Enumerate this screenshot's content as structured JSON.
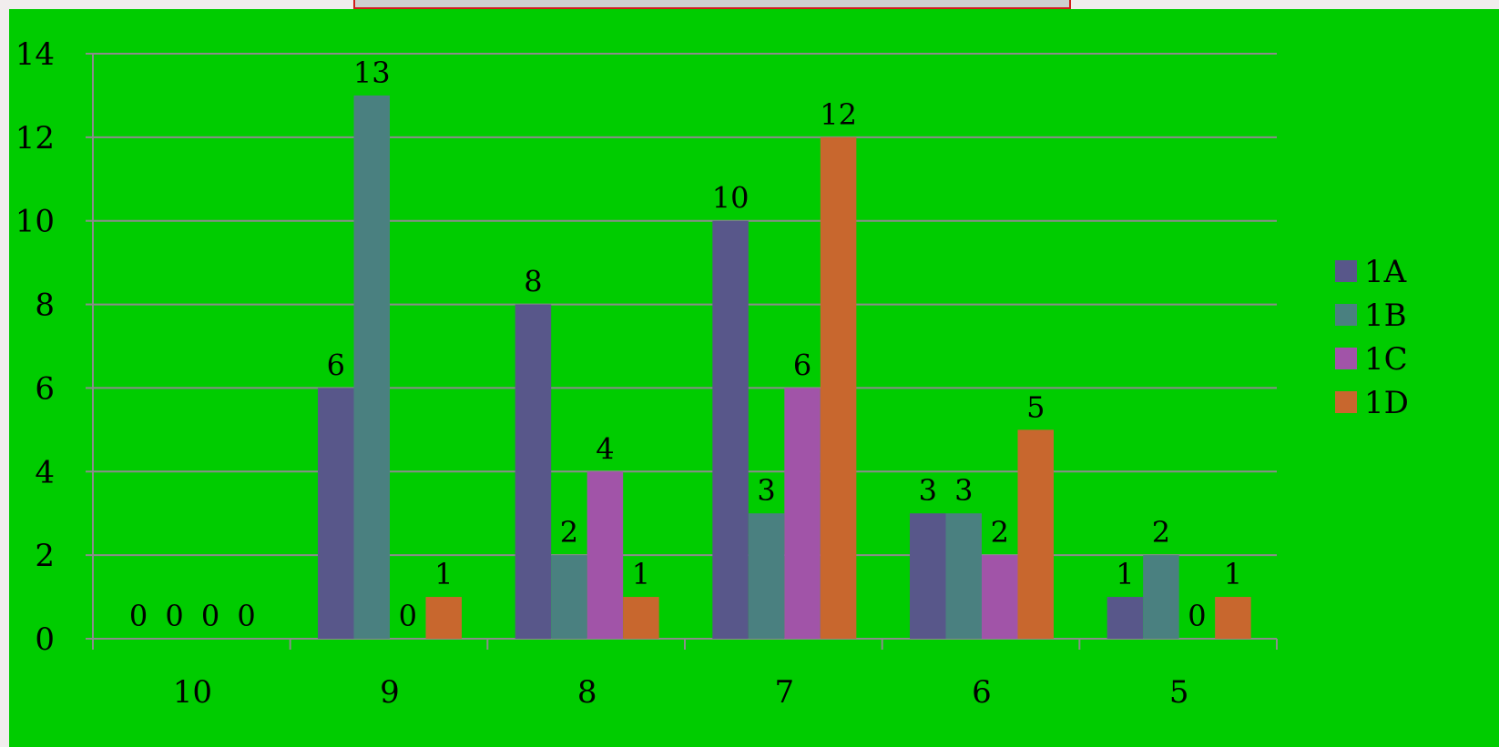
{
  "chart_data": {
    "type": "bar",
    "title": "",
    "xlabel": "",
    "ylabel": "",
    "categories": [
      "10",
      "9",
      "8",
      "7",
      "6",
      "5"
    ],
    "series": [
      {
        "name": "1A",
        "color": "#58578a",
        "values": [
          0,
          6,
          8,
          10,
          3,
          1
        ]
      },
      {
        "name": "1B",
        "color": "#4a8080",
        "values": [
          0,
          13,
          2,
          3,
          3,
          2
        ]
      },
      {
        "name": "1C",
        "color": "#a154a8",
        "values": [
          0,
          0,
          4,
          6,
          2,
          0
        ]
      },
      {
        "name": "1D",
        "color": "#c8672e",
        "values": [
          0,
          1,
          1,
          12,
          5,
          1
        ]
      }
    ],
    "ylim": [
      0,
      14
    ],
    "yticks": [
      "0",
      "2",
      "4",
      "6",
      "8",
      "10",
      "12",
      "14"
    ],
    "grid": true,
    "legend": "right"
  }
}
